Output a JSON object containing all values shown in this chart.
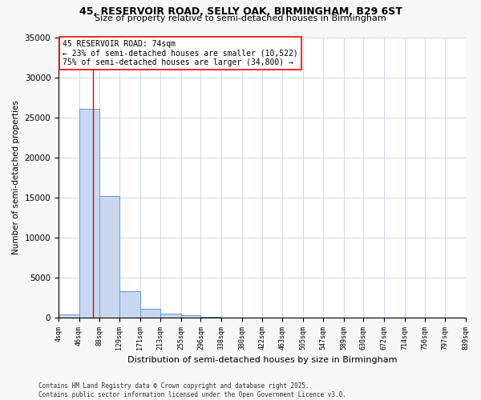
{
  "title1": "45, RESERVOIR ROAD, SELLY OAK, BIRMINGHAM, B29 6ST",
  "title2": "Size of property relative to semi-detached houses in Birmingham",
  "xlabel": "Distribution of semi-detached houses by size in Birmingham",
  "ylabel": "Number of semi-detached properties",
  "bar_color": "#c8d8f0",
  "bar_edge_color": "#6699cc",
  "vline_color": "red",
  "vline_x": 74,
  "annotation_text": "45 RESERVOIR ROAD: 74sqm\n← 23% of semi-detached houses are smaller (10,522)\n75% of semi-detached houses are larger (34,800) →",
  "bins": [
    4,
    46,
    88,
    129,
    171,
    213,
    255,
    296,
    338,
    380,
    422,
    463,
    505,
    547,
    589,
    630,
    672,
    714,
    756,
    797,
    839
  ],
  "counts": [
    350,
    26100,
    15200,
    3250,
    1100,
    450,
    300,
    50,
    0,
    0,
    0,
    0,
    0,
    0,
    0,
    0,
    0,
    0,
    0,
    0
  ],
  "ylim": [
    0,
    35000
  ],
  "yticks": [
    0,
    5000,
    10000,
    15000,
    20000,
    25000,
    30000,
    35000
  ],
  "plot_bg_color": "#ffffff",
  "fig_bg_color": "#f7f7f7",
  "grid_color": "#d0d8e8",
  "footer": "Contains HM Land Registry data © Crown copyright and database right 2025.\nContains public sector information licensed under the Open Government Licence v3.0.",
  "fig_width": 6.0,
  "fig_height": 5.0
}
